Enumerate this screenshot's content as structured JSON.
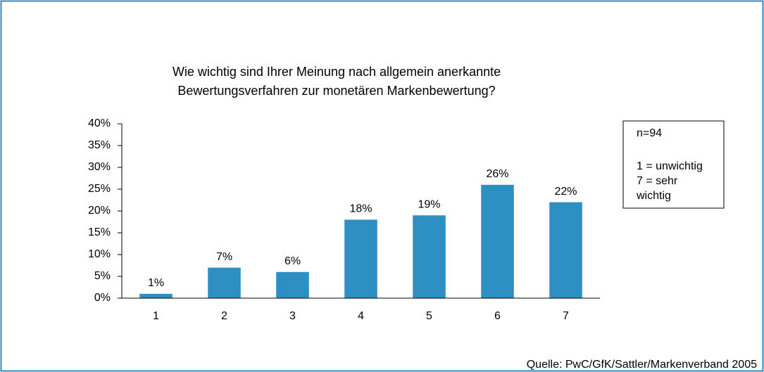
{
  "chart_data": {
    "type": "bar",
    "title": [
      "Wie wichtig sind Ihrer Meinung nach allgemein anerkannte",
      "Bewertungsverfahren zur monetären Markenbewertung?"
    ],
    "categories": [
      "1",
      "2",
      "3",
      "4",
      "5",
      "6",
      "7"
    ],
    "values": [
      1,
      7,
      6,
      18,
      19,
      26,
      22
    ],
    "value_labels": [
      "1%",
      "7%",
      "6%",
      "18%",
      "19%",
      "26%",
      "22%"
    ],
    "color": "#2e8fc2",
    "ylim": [
      0,
      40
    ],
    "yticks": [
      {
        "value": 0,
        "label": "0%"
      },
      {
        "value": 5,
        "label": "5%"
      },
      {
        "value": 10,
        "label": "10%"
      },
      {
        "value": 15,
        "label": "15%"
      },
      {
        "value": 20,
        "label": "20%"
      },
      {
        "value": 25,
        "label": "25%"
      },
      {
        "value": 30,
        "label": "30%"
      },
      {
        "value": 35,
        "label": "35%"
      },
      {
        "value": 40,
        "label": "40%"
      }
    ],
    "grid": false,
    "annotations": [
      "n=94",
      "1 = unwichtig",
      "7 = sehr",
      "wichtig"
    ],
    "source": "Quelle: PwC/GfK/Sattler/Markenverband 2005"
  }
}
